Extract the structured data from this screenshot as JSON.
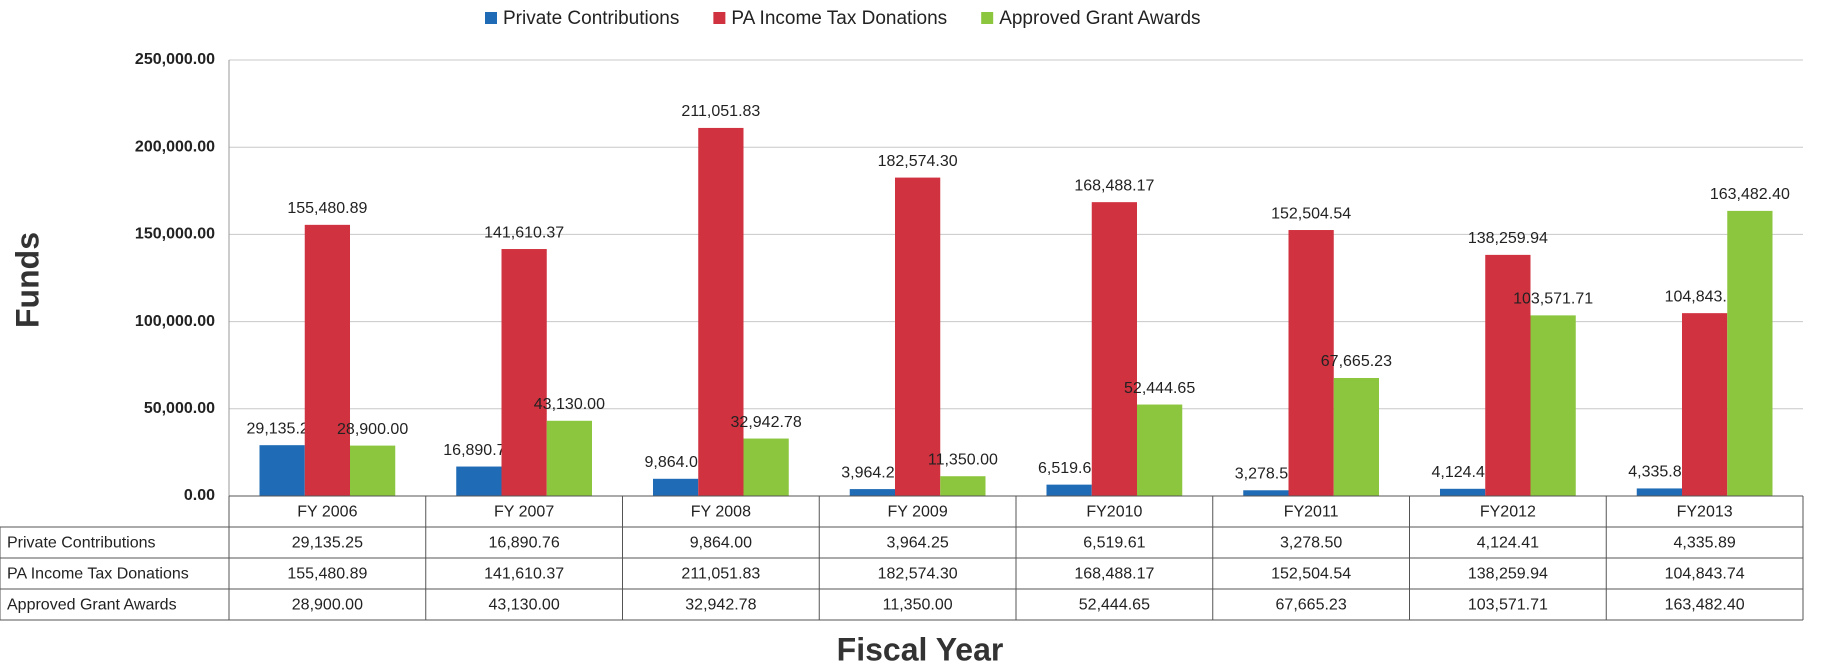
{
  "chart_data": {
    "type": "bar",
    "x_label": "Fiscal Year",
    "y_label": "Funds",
    "categories": [
      "FY 2006",
      "FY 2007",
      "FY 2008",
      "FY 2009",
      "FY2010",
      "FY2011",
      "FY2012",
      "FY2013"
    ],
    "series": [
      {
        "name": "Private Contributions",
        "color": "#1f6bb5",
        "values": [
          29135.25,
          16890.76,
          9864.0,
          3964.25,
          6519.61,
          3278.5,
          4124.41,
          4335.89
        ],
        "value_labels": [
          "29,135.25",
          "16,890.76",
          "9,864.00",
          "3,964.25",
          "6,519.61",
          "3,278.50",
          "4,124.41",
          "4,335.89"
        ]
      },
      {
        "name": "PA Income Tax Donations",
        "color": "#d0323f",
        "values": [
          155480.89,
          141610.37,
          211051.83,
          182574.3,
          168488.17,
          152504.54,
          138259.94,
          104843.74
        ],
        "value_labels": [
          "155,480.89",
          "141,610.37",
          "211,051.83",
          "182,574.30",
          "168,488.17",
          "152,504.54",
          "138,259.94",
          "104,843.74"
        ]
      },
      {
        "name": "Approved Grant Awards",
        "color": "#8cc63f",
        "values": [
          28900.0,
          43130.0,
          32942.78,
          11350.0,
          52444.65,
          67665.23,
          103571.71,
          163482.4
        ],
        "value_labels": [
          "28,900.00",
          "43,130.00",
          "32,942.78",
          "11,350.00",
          "52,444.65",
          "67,665.23",
          "103,571.71",
          "163,482.40"
        ]
      }
    ],
    "ylim": [
      0,
      250000
    ],
    "yticks": [
      {
        "value": 0,
        "label": "0.00"
      },
      {
        "value": 50000,
        "label": "50,000.00"
      },
      {
        "value": 100000,
        "label": "100,000.00"
      },
      {
        "value": 150000,
        "label": "150,000.00"
      },
      {
        "value": 200000,
        "label": "200,000.00"
      },
      {
        "value": 250000,
        "label": "250,000.00"
      }
    ],
    "grid": true,
    "legend": "top"
  }
}
